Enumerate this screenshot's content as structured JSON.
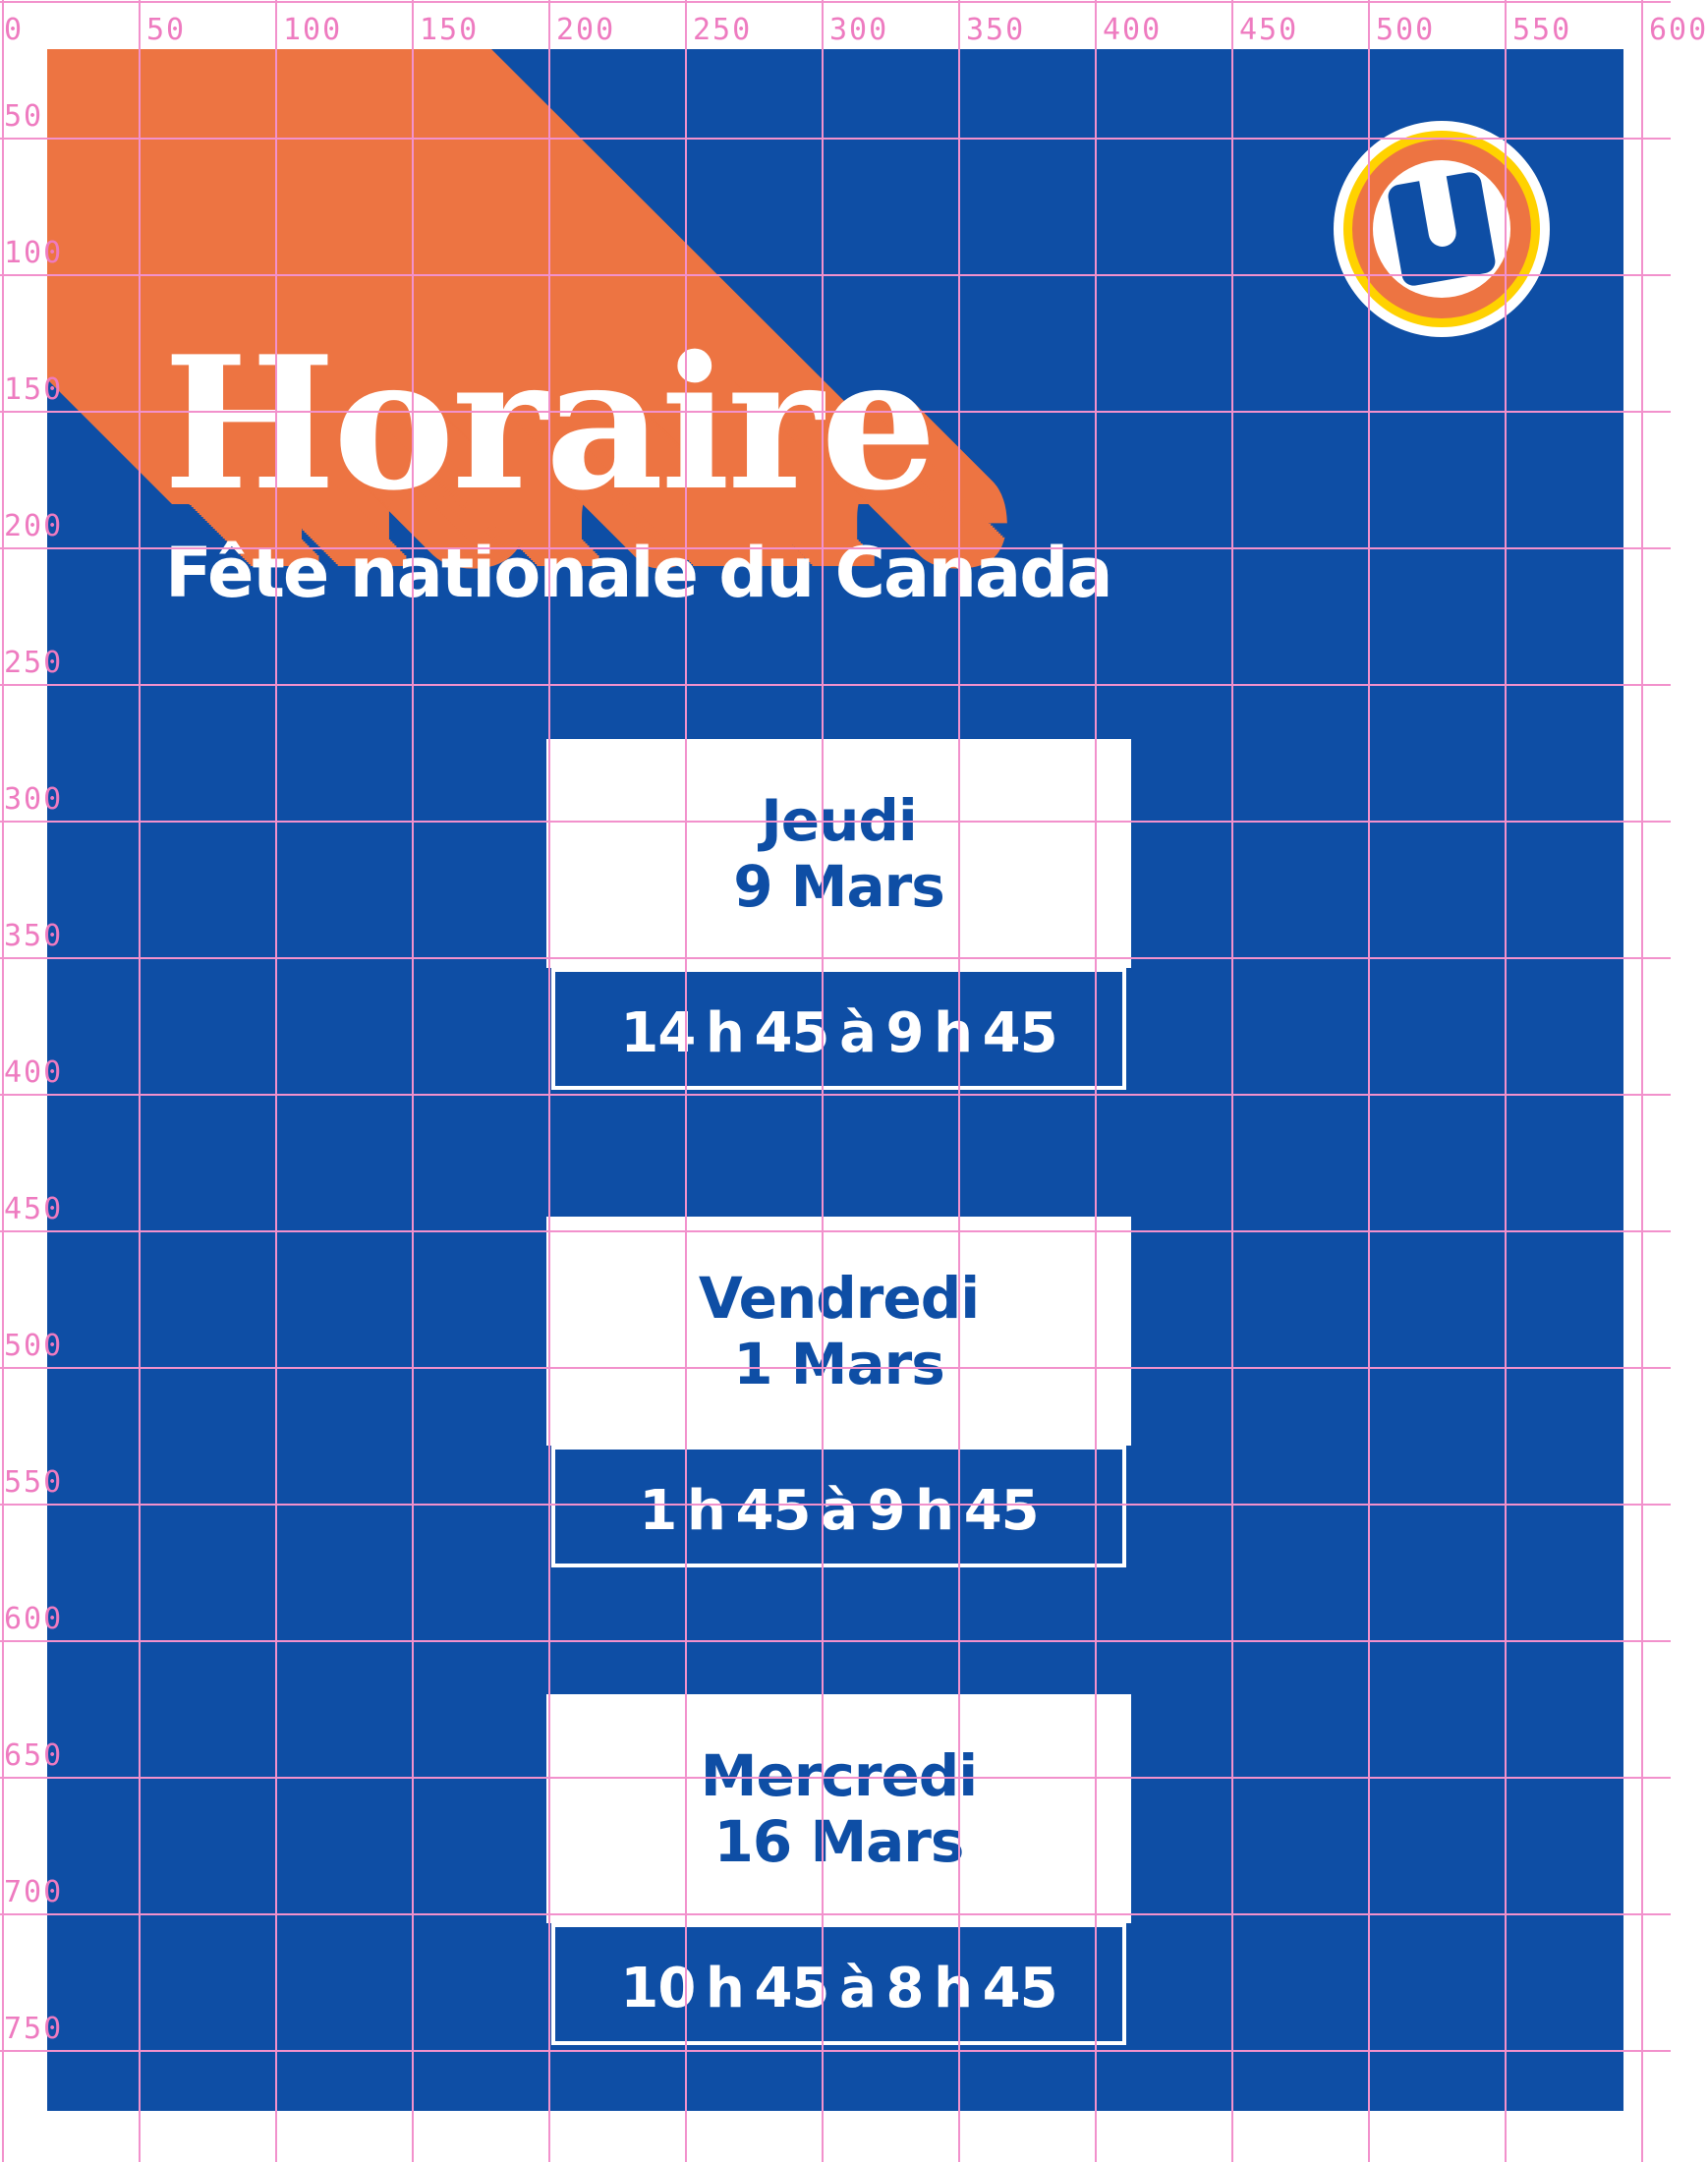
{
  "poster": {
    "title": "Horaire",
    "subtitle": "Fête nationale du Canada",
    "logo_letter": "U",
    "cards": [
      {
        "day": "Jeudi",
        "date": "9 Mars",
        "time": "14 h 45 à 9 h 45"
      },
      {
        "day": "Vendredi",
        "date": "1 Mars",
        "time": "1 h 45 à 9 h 45"
      },
      {
        "day": "Mercredi",
        "date": "16 Mars",
        "time": "10 h 45 à 8 h 45"
      }
    ]
  },
  "ruler": {
    "top_labels": [
      "0",
      "50",
      "100",
      "150",
      "200",
      "250",
      "300",
      "350",
      "400",
      "450",
      "500",
      "550",
      "600"
    ],
    "left_labels": [
      "50",
      "100",
      "150",
      "200",
      "250",
      "300",
      "350",
      "400",
      "450",
      "500",
      "550",
      "600",
      "650",
      "700",
      "750"
    ]
  },
  "colors": {
    "poster_blue": "#0E4EA5",
    "ribbon_orange": "#ED7442",
    "badge_yellow": "#FFD200",
    "grid_pink_line": "#F291CC",
    "grid_pink_text": "#EE7BC0",
    "card_white": "#FFFFFF"
  }
}
